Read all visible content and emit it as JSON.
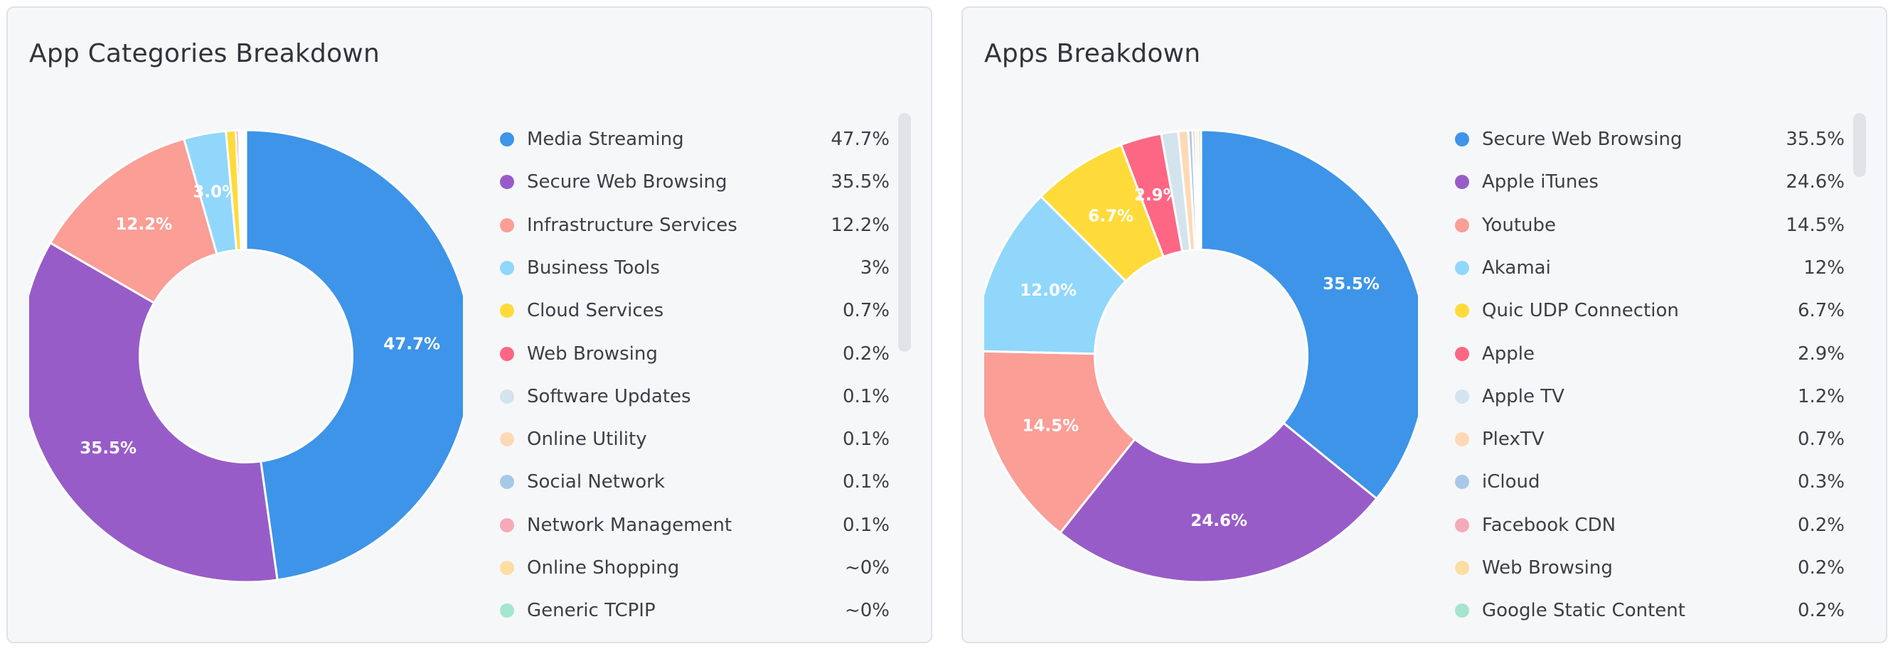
{
  "chart_data": [
    {
      "type": "pie",
      "title": "App Categories Breakdown",
      "legend_position": "right",
      "inner_radius_fraction": 0.47,
      "series": [
        {
          "name": "Media Streaming",
          "value": 47.7,
          "display": "47.7%",
          "color": "#3d94e8",
          "label": "47.7%"
        },
        {
          "name": "Secure Web Browsing",
          "value": 35.5,
          "display": "35.5%",
          "color": "#985cc8",
          "label": "35.5%"
        },
        {
          "name": "Infrastructure Services",
          "value": 12.2,
          "display": "12.2%",
          "color": "#fa9e96",
          "label": "12.2%"
        },
        {
          "name": "Business Tools",
          "value": 3.0,
          "display": "3%",
          "color": "#90d7fb",
          "label": "3.0%"
        },
        {
          "name": "Cloud Services",
          "value": 0.7,
          "display": "0.7%",
          "color": "#fedb3a",
          "label": ""
        },
        {
          "name": "Web Browsing",
          "value": 0.2,
          "display": "0.2%",
          "color": "#fd6783",
          "label": ""
        },
        {
          "name": "Software Updates",
          "value": 0.1,
          "display": "0.1%",
          "color": "#d3e4ee",
          "label": ""
        },
        {
          "name": "Online Utility",
          "value": 0.1,
          "display": "0.1%",
          "color": "#fed9b6",
          "label": ""
        },
        {
          "name": "Social Network",
          "value": 0.1,
          "display": "0.1%",
          "color": "#a7c9e6",
          "label": ""
        },
        {
          "name": "Network Management",
          "value": 0.1,
          "display": "0.1%",
          "color": "#f6aab8",
          "label": ""
        },
        {
          "name": "Online Shopping",
          "value": 0.0,
          "display": "~0%",
          "color": "#fcdea3",
          "label": ""
        },
        {
          "name": "Generic TCPIP",
          "value": 0.0,
          "display": "~0%",
          "color": "#a5e5cf",
          "label": ""
        }
      ]
    },
    {
      "type": "pie",
      "title": "Apps Breakdown",
      "legend_position": "right",
      "inner_radius_fraction": 0.47,
      "series": [
        {
          "name": "Secure Web Browsing",
          "value": 35.5,
          "display": "35.5%",
          "color": "#3d94e8",
          "label": "35.5%"
        },
        {
          "name": "Apple iTunes",
          "value": 24.6,
          "display": "24.6%",
          "color": "#985cc8",
          "label": "24.6%"
        },
        {
          "name": "Youtube",
          "value": 14.5,
          "display": "14.5%",
          "color": "#fa9e96",
          "label": "14.5%"
        },
        {
          "name": "Akamai",
          "value": 12.0,
          "display": "12%",
          "color": "#90d7fb",
          "label": "12.0%"
        },
        {
          "name": "Quic UDP Connection",
          "value": 6.7,
          "display": "6.7%",
          "color": "#fedb3a",
          "label": "6.7%"
        },
        {
          "name": "Apple",
          "value": 2.9,
          "display": "2.9%",
          "color": "#fd6783",
          "label": "2.9%"
        },
        {
          "name": "Apple TV",
          "value": 1.2,
          "display": "1.2%",
          "color": "#d3e4ee",
          "label": ""
        },
        {
          "name": "PlexTV",
          "value": 0.7,
          "display": "0.7%",
          "color": "#fed9b6",
          "label": ""
        },
        {
          "name": "iCloud",
          "value": 0.3,
          "display": "0.3%",
          "color": "#a7c9e6",
          "label": ""
        },
        {
          "name": "Facebook CDN",
          "value": 0.2,
          "display": "0.2%",
          "color": "#f6aab8",
          "label": ""
        },
        {
          "name": "Web Browsing",
          "value": 0.2,
          "display": "0.2%",
          "color": "#fcdea3",
          "label": ""
        },
        {
          "name": "Google Static Content",
          "value": 0.2,
          "display": "0.2%",
          "color": "#a5e5cf",
          "label": ""
        }
      ]
    }
  ]
}
